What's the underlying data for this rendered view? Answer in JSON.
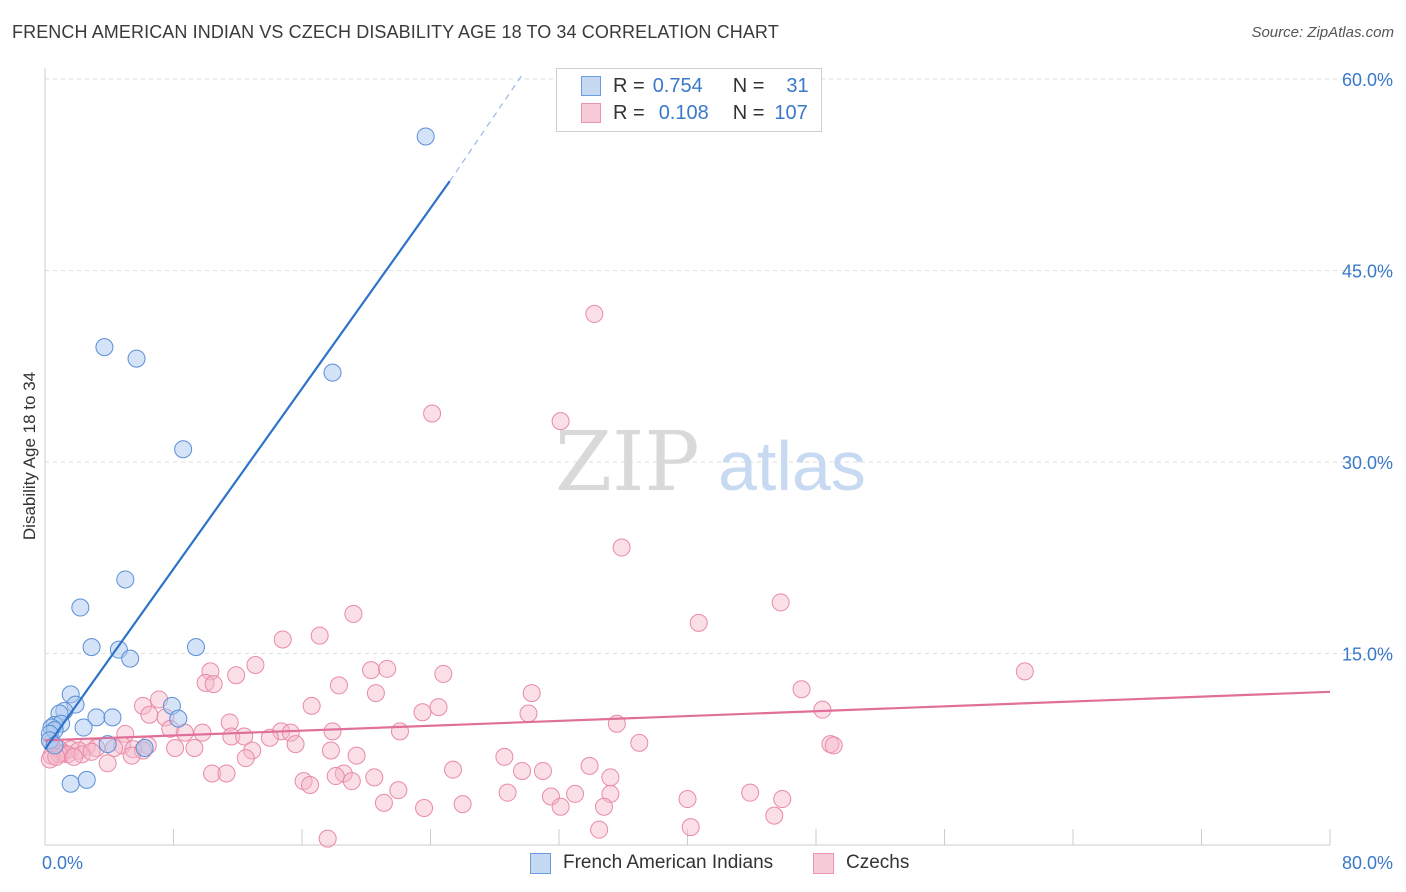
{
  "title": "FRENCH AMERICAN INDIAN VS CZECH DISABILITY AGE 18 TO 34 CORRELATION CHART",
  "source": "Source: ZipAtlas.com",
  "watermark": {
    "zip": "ZIP",
    "atlas": "atlas"
  },
  "colors": {
    "blue_fill": "#aac8f0",
    "blue_stroke": "#5b8fd6",
    "blue_line": "#2f72c9",
    "pink_fill": "#f5b8ca",
    "pink_stroke": "#e98aa6",
    "pink_line": "#e0709a",
    "axis_text": "#3a78c9",
    "grid": "#dedede"
  },
  "legend": {
    "blue": {
      "r_label": "R =",
      "r_value": "0.754",
      "n_label": "N =",
      "n_value": "31"
    },
    "pink": {
      "r_label": "R =",
      "r_value": "0.108",
      "n_label": "N =",
      "n_value": "107"
    }
  },
  "chart_data": {
    "type": "scatter",
    "xlabel": "",
    "ylabel": "Disability Age 18 to 34",
    "xlim": [
      0,
      80
    ],
    "ylim": [
      0,
      62
    ],
    "x_tick_labels": [
      {
        "value": 0,
        "label": "0.0%"
      },
      {
        "value": 80,
        "label": "80.0%"
      }
    ],
    "x_minor_ticks": [
      0,
      8,
      16,
      24,
      32,
      40,
      48,
      56,
      64,
      72,
      80
    ],
    "y_tick_labels": [
      {
        "value": 15,
        "label": "15.0%"
      },
      {
        "value": 30,
        "label": "30.0%"
      },
      {
        "value": 45,
        "label": "45.0%"
      },
      {
        "value": 60,
        "label": "60.0%"
      }
    ],
    "gridlines": [
      15,
      30,
      45,
      60
    ],
    "series": [
      {
        "name": "French American Indians",
        "color": "blue",
        "trendline": {
          "x0": 0,
          "y0": 7.5,
          "x1": 25.2,
          "y1": 52.0,
          "dashed_to_x": 29.8,
          "dashed_to_y": 60.5
        },
        "points": [
          [
            23.7,
            55.5
          ],
          [
            3.7,
            39.0
          ],
          [
            5.7,
            38.1
          ],
          [
            17.9,
            37.0
          ],
          [
            8.6,
            31.0
          ],
          [
            5.0,
            20.8
          ],
          [
            2.2,
            18.6
          ],
          [
            2.9,
            15.5
          ],
          [
            4.6,
            15.3
          ],
          [
            5.3,
            14.6
          ],
          [
            9.4,
            15.5
          ],
          [
            1.6,
            11.8
          ],
          [
            1.9,
            11.0
          ],
          [
            7.9,
            10.9
          ],
          [
            1.2,
            10.5
          ],
          [
            0.9,
            10.3
          ],
          [
            3.2,
            10.0
          ],
          [
            4.2,
            10.0
          ],
          [
            8.3,
            9.9
          ],
          [
            0.6,
            9.4
          ],
          [
            1.0,
            9.5
          ],
          [
            0.4,
            9.2
          ],
          [
            2.4,
            9.2
          ],
          [
            0.6,
            9.0
          ],
          [
            0.3,
            8.7
          ],
          [
            0.3,
            8.2
          ],
          [
            0.6,
            7.8
          ],
          [
            3.9,
            7.9
          ],
          [
            6.2,
            7.6
          ],
          [
            1.6,
            4.8
          ],
          [
            2.6,
            5.1
          ]
        ]
      },
      {
        "name": "Czechs",
        "color": "pink",
        "trendline": {
          "x0": 0,
          "y0": 8.2,
          "x1": 80,
          "y1": 12.0
        },
        "points": [
          [
            34.2,
            41.6
          ],
          [
            24.1,
            33.8
          ],
          [
            32.1,
            33.2
          ],
          [
            35.9,
            23.3
          ],
          [
            45.8,
            19.0
          ],
          [
            40.7,
            17.4
          ],
          [
            19.2,
            18.1
          ],
          [
            17.1,
            16.4
          ],
          [
            14.8,
            16.1
          ],
          [
            13.1,
            14.1
          ],
          [
            10.3,
            13.6
          ],
          [
            11.9,
            13.3
          ],
          [
            20.3,
            13.7
          ],
          [
            21.3,
            13.8
          ],
          [
            24.8,
            13.4
          ],
          [
            61.0,
            13.6
          ],
          [
            10.0,
            12.7
          ],
          [
            18.3,
            12.5
          ],
          [
            7.1,
            11.4
          ],
          [
            10.5,
            12.6
          ],
          [
            20.6,
            11.9
          ],
          [
            30.3,
            11.9
          ],
          [
            47.1,
            12.2
          ],
          [
            6.1,
            10.9
          ],
          [
            16.6,
            10.9
          ],
          [
            24.5,
            10.8
          ],
          [
            23.5,
            10.4
          ],
          [
            30.1,
            10.3
          ],
          [
            48.4,
            10.6
          ],
          [
            6.5,
            10.2
          ],
          [
            7.5,
            10.0
          ],
          [
            11.5,
            9.6
          ],
          [
            7.8,
            9.1
          ],
          [
            8.7,
            8.8
          ],
          [
            9.8,
            8.8
          ],
          [
            14.7,
            8.9
          ],
          [
            15.3,
            8.8
          ],
          [
            17.9,
            8.9
          ],
          [
            22.1,
            8.9
          ],
          [
            35.6,
            9.5
          ],
          [
            5.0,
            8.7
          ],
          [
            11.6,
            8.5
          ],
          [
            12.4,
            8.5
          ],
          [
            14.0,
            8.4
          ],
          [
            6.4,
            7.8
          ],
          [
            15.6,
            7.9
          ],
          [
            4.8,
            7.8
          ],
          [
            8.1,
            7.6
          ],
          [
            9.3,
            7.6
          ],
          [
            4.3,
            7.6
          ],
          [
            2.6,
            7.7
          ],
          [
            3.2,
            7.6
          ],
          [
            1.6,
            7.5
          ],
          [
            0.9,
            7.5
          ],
          [
            2.1,
            7.4
          ],
          [
            5.5,
            7.5
          ],
          [
            6.1,
            7.4
          ],
          [
            12.9,
            7.4
          ],
          [
            17.8,
            7.4
          ],
          [
            37.0,
            8.0
          ],
          [
            48.9,
            7.9
          ],
          [
            49.1,
            7.8
          ],
          [
            1.1,
            7.2
          ],
          [
            1.4,
            7.1
          ],
          [
            2.3,
            7.1
          ],
          [
            0.4,
            7.0
          ],
          [
            0.9,
            7.1
          ],
          [
            0.3,
            6.7
          ],
          [
            0.7,
            6.9
          ],
          [
            1.8,
            6.9
          ],
          [
            3.9,
            6.4
          ],
          [
            5.4,
            7.0
          ],
          [
            12.5,
            6.8
          ],
          [
            19.4,
            7.0
          ],
          [
            28.6,
            6.9
          ],
          [
            10.4,
            5.6
          ],
          [
            11.3,
            5.6
          ],
          [
            18.6,
            5.6
          ],
          [
            25.4,
            5.9
          ],
          [
            29.7,
            5.8
          ],
          [
            31.0,
            5.8
          ],
          [
            33.9,
            6.2
          ],
          [
            35.2,
            5.3
          ],
          [
            16.1,
            5.0
          ],
          [
            16.5,
            4.7
          ],
          [
            19.1,
            5.0
          ],
          [
            18.1,
            5.4
          ],
          [
            20.5,
            5.3
          ],
          [
            28.8,
            4.1
          ],
          [
            31.5,
            3.8
          ],
          [
            33.0,
            4.0
          ],
          [
            35.2,
            4.0
          ],
          [
            43.9,
            4.1
          ],
          [
            45.9,
            3.6
          ],
          [
            40.0,
            3.6
          ],
          [
            22.0,
            4.3
          ],
          [
            21.1,
            3.3
          ],
          [
            23.6,
            2.9
          ],
          [
            26.0,
            3.2
          ],
          [
            32.1,
            3.0
          ],
          [
            34.8,
            3.0
          ],
          [
            45.4,
            2.3
          ],
          [
            34.5,
            1.2
          ],
          [
            40.2,
            1.4
          ],
          [
            17.6,
            0.5
          ],
          [
            0.4,
            8.0
          ],
          [
            2.9,
            7.3
          ]
        ]
      }
    ]
  }
}
